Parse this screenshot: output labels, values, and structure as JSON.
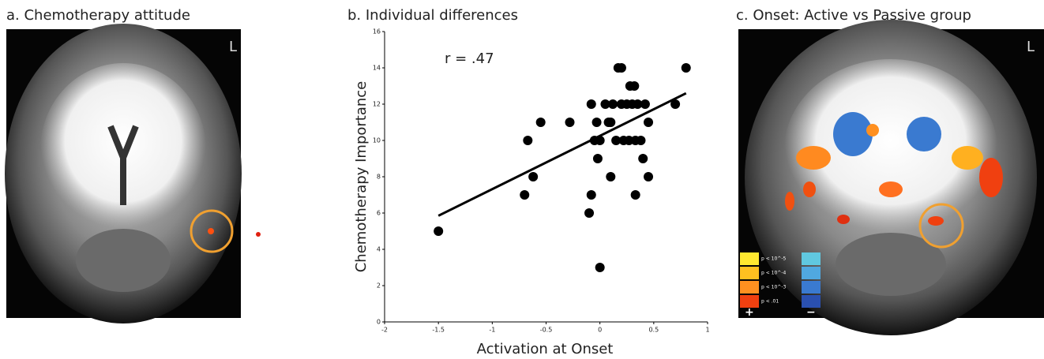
{
  "panel_a": {
    "title": "a. Chemotherapy attitude",
    "orientation": "L"
  },
  "chart_data": {
    "type": "scatter",
    "title": "b. Individual differences",
    "annotation": "r = .47",
    "x_label": "Activation at Onset",
    "y_label": "Chemotherapy Importance",
    "x": [
      -1.5,
      -0.7,
      -0.67,
      -0.62,
      -0.55,
      -0.28,
      -0.1,
      -0.08,
      -0.08,
      -0.05,
      -0.03,
      -0.02,
      0,
      0,
      0.05,
      0.08,
      0.1,
      0.1,
      0.12,
      0.15,
      0.17,
      0.2,
      0.2,
      0.22,
      0.25,
      0.27,
      0.28,
      0.3,
      0.32,
      0.33,
      0.33,
      0.35,
      0.38,
      0.4,
      0.42,
      0.45,
      0.45,
      0.7,
      0.8
    ],
    "values": [
      5,
      7,
      10,
      8,
      11,
      11,
      6,
      7,
      12,
      10,
      11,
      9,
      3,
      10,
      12,
      11,
      11,
      8,
      12,
      10,
      14,
      14,
      12,
      10,
      12,
      10,
      13,
      12,
      13,
      10,
      7,
      12,
      10,
      9,
      12,
      11,
      8,
      12,
      14
    ],
    "color": "#000000",
    "fit_line": {
      "x": [
        -1.5,
        0.8
      ],
      "values": [
        5.85,
        12.6
      ]
    },
    "xlim": [
      -2,
      1
    ],
    "ylim": [
      0,
      16
    ],
    "xticks": [
      -2,
      -1.5,
      -1,
      -0.5,
      0,
      0.5,
      1
    ],
    "yticks": [
      0,
      2,
      4,
      6,
      8,
      10,
      12,
      14,
      16
    ]
  },
  "panel_c": {
    "title": "c. Onset: Active vs Passive group",
    "orientation": "L",
    "legend_labels": [
      "p < 10^-5",
      "p < 10^-4",
      "p < 10^-3",
      "p < .01"
    ],
    "signs": [
      "+",
      "−"
    ]
  }
}
